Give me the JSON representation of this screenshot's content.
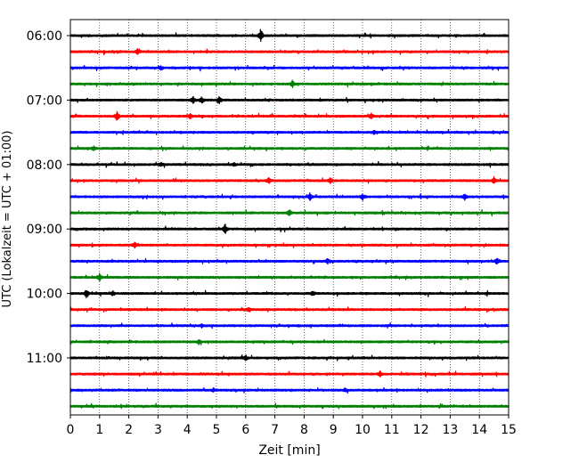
{
  "chart_data": {
    "type": "line",
    "title": "",
    "xlabel": "Zeit  [min]",
    "ylabel": "UTC (Lokalzeit = UTC + 01:00)",
    "xlim": [
      0,
      15
    ],
    "x_ticks": [
      0,
      1,
      2,
      3,
      4,
      5,
      6,
      7,
      8,
      9,
      10,
      11,
      12,
      13,
      14,
      15
    ],
    "x_tick_labels": [
      "0",
      "1",
      "2",
      "3",
      "4",
      "5",
      "6",
      "7",
      "8",
      "9",
      "10",
      "11",
      "12",
      "13",
      "14",
      "15"
    ],
    "y_tick_labels": [
      "06:00",
      "07:00",
      "08:00",
      "09:00",
      "10:00",
      "11:00"
    ],
    "vertical_grid": true,
    "trace_interval_min": 15,
    "start_time": "06:00",
    "colors": [
      "#000000",
      "#ff0000",
      "#0000ff",
      "#008000"
    ],
    "traces": [
      {
        "time": "06:00",
        "color": "#000000",
        "events": [
          [
            6.52,
            9
          ]
        ]
      },
      {
        "time": "06:15",
        "color": "#ff0000",
        "events": [
          [
            2.3,
            3
          ]
        ]
      },
      {
        "time": "06:30",
        "color": "#0000ff",
        "events": [
          [
            3.1,
            2
          ]
        ]
      },
      {
        "time": "06:45",
        "color": "#008000",
        "events": [
          [
            7.6,
            4
          ]
        ]
      },
      {
        "time": "07:00",
        "color": "#000000",
        "events": [
          [
            4.2,
            5
          ],
          [
            4.5,
            4
          ],
          [
            5.1,
            4
          ]
        ]
      },
      {
        "time": "07:15",
        "color": "#ff0000",
        "events": [
          [
            1.6,
            6
          ],
          [
            4.1,
            3
          ],
          [
            10.3,
            3
          ]
        ]
      },
      {
        "time": "07:30",
        "color": "#0000ff",
        "events": [
          [
            10.4,
            2
          ]
        ]
      },
      {
        "time": "07:45",
        "color": "#008000",
        "events": [
          [
            0.8,
            2
          ]
        ]
      },
      {
        "time": "08:00",
        "color": "#000000",
        "events": [
          [
            3.1,
            2
          ],
          [
            5.6,
            2
          ]
        ]
      },
      {
        "time": "08:15",
        "color": "#ff0000",
        "events": [
          [
            6.8,
            4
          ],
          [
            8.9,
            4
          ],
          [
            14.5,
            4
          ]
        ]
      },
      {
        "time": "08:30",
        "color": "#0000ff",
        "events": [
          [
            8.2,
            4
          ],
          [
            10.0,
            4
          ],
          [
            13.5,
            3
          ]
        ]
      },
      {
        "time": "08:45",
        "color": "#008000",
        "events": [
          [
            7.5,
            4
          ]
        ]
      },
      {
        "time": "09:00",
        "color": "#000000",
        "events": [
          [
            5.3,
            6
          ]
        ]
      },
      {
        "time": "09:15",
        "color": "#ff0000",
        "events": [
          [
            2.2,
            3
          ]
        ]
      },
      {
        "time": "09:30",
        "color": "#0000ff",
        "events": [
          [
            8.8,
            3
          ],
          [
            14.6,
            4
          ]
        ]
      },
      {
        "time": "09:45",
        "color": "#008000",
        "events": [
          [
            1.0,
            4
          ]
        ]
      },
      {
        "time": "10:00",
        "color": "#000000",
        "events": [
          [
            0.55,
            5
          ],
          [
            1.45,
            3
          ],
          [
            8.3,
            3
          ]
        ]
      },
      {
        "time": "10:15",
        "color": "#ff0000",
        "events": [
          [
            6.1,
            2
          ]
        ]
      },
      {
        "time": "10:30",
        "color": "#0000ff",
        "events": [
          [
            4.5,
            2
          ]
        ]
      },
      {
        "time": "10:45",
        "color": "#008000",
        "events": [
          [
            4.4,
            3
          ]
        ]
      },
      {
        "time": "11:00",
        "color": "#000000",
        "events": [
          [
            6.0,
            3
          ]
        ]
      },
      {
        "time": "11:15",
        "color": "#ff0000",
        "events": [
          [
            10.6,
            3
          ]
        ]
      },
      {
        "time": "11:30",
        "color": "#0000ff",
        "events": [
          [
            4.9,
            2
          ],
          [
            9.4,
            2
          ]
        ]
      },
      {
        "time": "11:45",
        "color": "#008000",
        "events": []
      }
    ]
  }
}
